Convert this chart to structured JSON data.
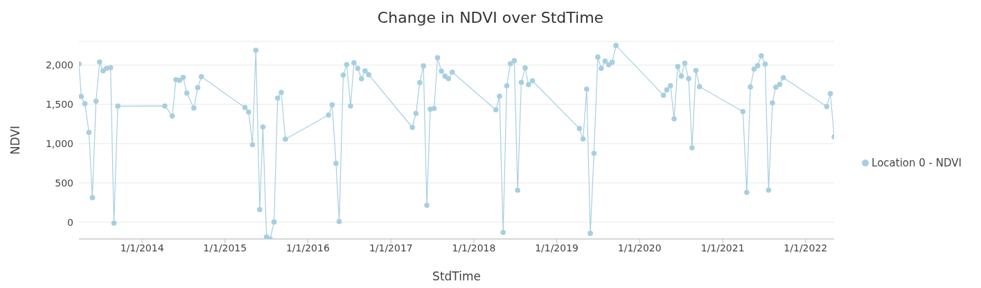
{
  "chart_data": {
    "type": "line",
    "title": "Change in NDVI over StdTime",
    "xlabel": "StdTime",
    "ylabel": "NDVI",
    "x": [
      "2013-03-29",
      "2013-04-08",
      "2013-04-24",
      "2013-05-12",
      "2013-05-27",
      "2013-06-12",
      "2013-06-28",
      "2013-07-13",
      "2013-07-28",
      "2013-08-15",
      "2013-08-30",
      "2013-09-16",
      "2014-04-11",
      "2014-05-14",
      "2014-05-30",
      "2014-06-15",
      "2014-07-01",
      "2014-07-17",
      "2014-08-17",
      "2014-09-03",
      "2014-09-19",
      "2015-03-30",
      "2015-04-15",
      "2015-05-02",
      "2015-05-17",
      "2015-06-03",
      "2015-06-17",
      "2015-07-03",
      "2015-07-19",
      "2015-08-05",
      "2015-08-21",
      "2015-09-06",
      "2015-09-24",
      "2016-04-01",
      "2016-04-17",
      "2016-05-04",
      "2016-05-18",
      "2016-06-05",
      "2016-06-20",
      "2016-07-07",
      "2016-07-22",
      "2016-08-08",
      "2016-08-24",
      "2016-09-09",
      "2016-09-25",
      "2017-04-05",
      "2017-04-21",
      "2017-05-08",
      "2017-05-24",
      "2017-06-08",
      "2017-06-23",
      "2017-07-10",
      "2017-07-25",
      "2017-08-11",
      "2017-08-27",
      "2017-09-11",
      "2017-09-28",
      "2018-04-08",
      "2018-04-24",
      "2018-05-10",
      "2018-05-26",
      "2018-06-11",
      "2018-06-28",
      "2018-07-13",
      "2018-07-29",
      "2018-08-15",
      "2018-08-30",
      "2018-09-16",
      "2019-04-11",
      "2019-04-27",
      "2019-05-13",
      "2019-05-29",
      "2019-06-14",
      "2019-07-01",
      "2019-07-16",
      "2019-08-02",
      "2019-08-18",
      "2019-09-02",
      "2019-09-19",
      "2020-04-15",
      "2020-04-30",
      "2020-05-16",
      "2020-06-01",
      "2020-06-17",
      "2020-07-03",
      "2020-07-18",
      "2020-08-04",
      "2020-08-19",
      "2020-09-05",
      "2020-09-21",
      "2021-03-31",
      "2021-04-17",
      "2021-05-03",
      "2021-05-19",
      "2021-06-04",
      "2021-06-20",
      "2021-07-07",
      "2021-07-22",
      "2021-08-08",
      "2021-08-23",
      "2021-09-09",
      "2021-09-25",
      "2022-04-04",
      "2022-04-20",
      "2022-05-07"
    ],
    "series": [
      {
        "name": "Location 0 - NDVI",
        "color": "#a6cfe0",
        "values": [
          2015,
          1600,
          1508,
          1143,
          313,
          1540,
          2038,
          1926,
          1957,
          1966,
          -12,
          1477,
          1479,
          1352,
          1814,
          1805,
          1842,
          1643,
          1453,
          1713,
          1851,
          1459,
          1402,
          987,
          2188,
          161,
          1212,
          -187,
          -213,
          3,
          1580,
          1652,
          1056,
          1364,
          1494,
          748,
          9,
          1871,
          2006,
          1479,
          2029,
          1957,
          1825,
          1926,
          1877,
          1206,
          1384,
          1776,
          1989,
          216,
          1439,
          1448,
          2093,
          1922,
          1857,
          1827,
          1909,
          1430,
          1603,
          -130,
          1736,
          2017,
          2055,
          406,
          1779,
          1963,
          1750,
          1799,
          1192,
          1059,
          1693,
          -142,
          877,
          2101,
          1957,
          2049,
          2004,
          2035,
          2248,
          1615,
          1684,
          1738,
          1315,
          1980,
          1859,
          2023,
          1827,
          946,
          1931,
          1724,
          1408,
          380,
          1721,
          1948,
          1991,
          2118,
          2012,
          408,
          1517,
          1718,
          1753,
          1839,
          1471,
          1637,
          1088
        ]
      }
    ],
    "xlim": [
      "2013-03-29",
      "2022-05-07"
    ],
    "xticks": [
      {
        "value": "2014-01-01",
        "label": "1/1/2014"
      },
      {
        "value": "2015-01-01",
        "label": "1/1/2015"
      },
      {
        "value": "2016-01-01",
        "label": "1/1/2016"
      },
      {
        "value": "2017-01-01",
        "label": "1/1/2017"
      },
      {
        "value": "2018-01-01",
        "label": "1/1/2018"
      },
      {
        "value": "2019-01-01",
        "label": "1/1/2019"
      },
      {
        "value": "2020-01-01",
        "label": "1/1/2020"
      },
      {
        "value": "2021-01-01",
        "label": "1/1/2021"
      },
      {
        "value": "2022-01-01",
        "label": "1/1/2022"
      }
    ],
    "ylim": [
      -213,
      2300
    ],
    "yticks": [
      0,
      {
        "value": 500,
        "label": "500"
      },
      {
        "value": 1000,
        "label": "1,000"
      },
      {
        "value": 1500,
        "label": "1,500"
      },
      {
        "value": 2000,
        "label": "2,000"
      }
    ],
    "grid": "y",
    "legend": "right",
    "marker": "circle",
    "line_style": "solid"
  }
}
